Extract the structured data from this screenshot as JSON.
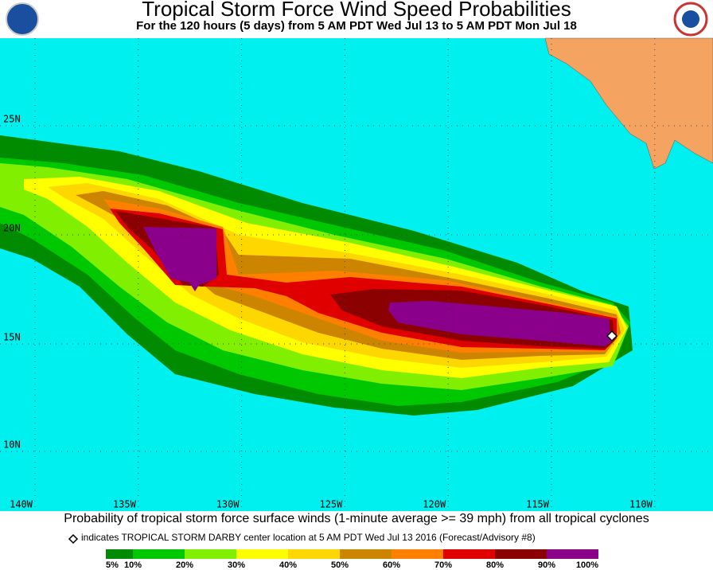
{
  "header": {
    "title": "Tropical Storm Force Wind Speed Probabilities",
    "subtitle": "For the 120 hours (5 days) from 5 AM PDT Wed Jul 13 to 5 AM PDT Mon Jul 18"
  },
  "map": {
    "latitude_labels": [
      "25N",
      "20N",
      "15N",
      "10N"
    ],
    "longitude_labels": [
      "140W",
      "135W",
      "130W",
      "125W",
      "120W",
      "115W",
      "110W"
    ]
  },
  "caption": "Probability of tropical storm force surface winds (1-minute average >= 39 mph) from all tropical cyclones",
  "marker_note": "indicates TROPICAL STORM DARBY center location at 5 AM PDT Wed Jul 13 2016 (Forecast/Advisory #8)",
  "legend": {
    "labels": [
      "5%",
      "10%",
      "20%",
      "30%",
      "40%",
      "50%",
      "60%",
      "70%",
      "80%",
      "90%",
      "100%"
    ],
    "colors": [
      "#008b00",
      "#00c800",
      "#80f000",
      "#ffff00",
      "#ffd700",
      "#cd8500",
      "#ff8000",
      "#e00000",
      "#8b0000",
      "#8b008b"
    ]
  }
}
